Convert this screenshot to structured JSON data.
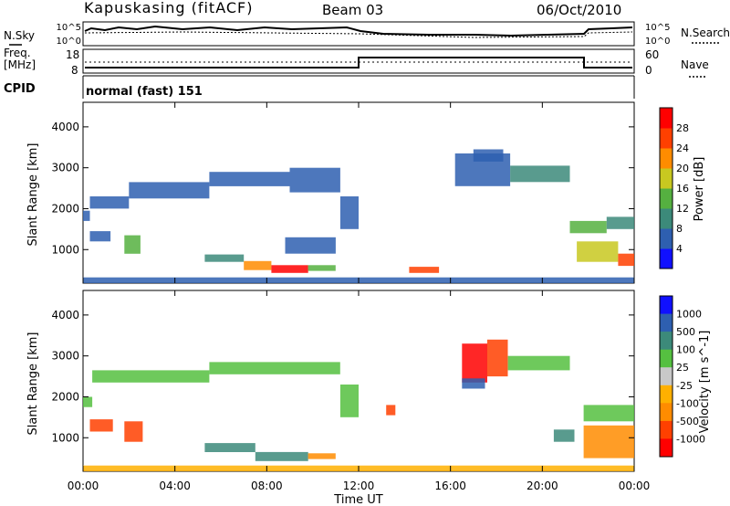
{
  "header": {
    "site": "Kapuskasing (fitACF)",
    "beam": "Beam 03",
    "date": "06/Oct/2010"
  },
  "top_panels": {
    "noise": {
      "left_label": "N.Sky",
      "right_label": "N.Search",
      "left_ticks": [
        "10^5",
        "10^0"
      ],
      "right_ticks": [
        "10^5",
        "10^0"
      ]
    },
    "freq": {
      "left_label_1": "Freq.",
      "left_label_2": "[MHz]",
      "right_label": "Nave",
      "left_ticks": [
        "18",
        "8"
      ],
      "right_ticks": [
        "60",
        "0"
      ]
    },
    "cpid": {
      "label": "CPID",
      "mode_text": "normal (fast) 151"
    }
  },
  "chart_data": [
    {
      "type": "heatmap",
      "title": "",
      "ylabel": "Slant Range [km]",
      "xlabel": "",
      "xlim": [
        0,
        24
      ],
      "ylim": [
        180,
        4600
      ],
      "yticks": [
        "1000",
        "2000",
        "3000",
        "4000"
      ],
      "colorbar": {
        "label": "Power [dB]",
        "ticks": [
          "4",
          "8",
          "12",
          "16",
          "20",
          "24",
          "28"
        ],
        "colors": [
          "#1010ff",
          "#2e5fb0",
          "#3c8a7a",
          "#55b040",
          "#c8c820",
          "#ff8c00",
          "#ff4000",
          "#ff0000"
        ],
        "range": [
          0,
          32
        ]
      },
      "regions": [
        {
          "t0": 0.0,
          "t1": 0.3,
          "r0": 1700,
          "r1": 1950,
          "value": 6
        },
        {
          "t0": 0.3,
          "t1": 2.0,
          "r0": 2000,
          "r1": 2300,
          "value": 4
        },
        {
          "t0": 2.0,
          "t1": 5.5,
          "r0": 2250,
          "r1": 2650,
          "value": 4
        },
        {
          "t0": 5.5,
          "t1": 9.0,
          "r0": 2550,
          "r1": 2900,
          "value": 4
        },
        {
          "t0": 9.0,
          "t1": 11.2,
          "r0": 2400,
          "r1": 3000,
          "value": 4
        },
        {
          "t0": 11.2,
          "t1": 12.0,
          "r0": 1500,
          "r1": 2300,
          "value": 4
        },
        {
          "t0": 0.3,
          "t1": 1.2,
          "r0": 1200,
          "r1": 1450,
          "value": 4
        },
        {
          "t0": 1.8,
          "t1": 2.5,
          "r0": 900,
          "r1": 1350,
          "value": 12
        },
        {
          "t0": 5.3,
          "t1": 7.0,
          "r0": 700,
          "r1": 880,
          "value": 8
        },
        {
          "t0": 7.0,
          "t1": 8.2,
          "r0": 500,
          "r1": 720,
          "value": 20
        },
        {
          "t0": 8.2,
          "t1": 9.8,
          "r0": 430,
          "r1": 620,
          "value": 28
        },
        {
          "t0": 9.8,
          "t1": 11.0,
          "r0": 480,
          "r1": 620,
          "value": 12
        },
        {
          "t0": 8.8,
          "t1": 11.0,
          "r0": 900,
          "r1": 1300,
          "value": 6
        },
        {
          "t0": 14.2,
          "t1": 15.5,
          "r0": 430,
          "r1": 580,
          "value": 24
        },
        {
          "t0": 16.2,
          "t1": 18.6,
          "r0": 2550,
          "r1": 3350,
          "value": 6
        },
        {
          "t0": 18.6,
          "t1": 21.2,
          "r0": 2650,
          "r1": 3050,
          "value": 10
        },
        {
          "t0": 17.0,
          "t1": 18.3,
          "r0": 3150,
          "r1": 3450,
          "value": 4
        },
        {
          "t0": 21.2,
          "t1": 22.8,
          "r0": 1400,
          "r1": 1700,
          "value": 14
        },
        {
          "t0": 22.8,
          "t1": 24.0,
          "r0": 1500,
          "r1": 1800,
          "value": 10
        },
        {
          "t0": 21.5,
          "t1": 23.3,
          "r0": 700,
          "r1": 1200,
          "value": 18
        },
        {
          "t0": 23.3,
          "t1": 24.0,
          "r0": 600,
          "r1": 900,
          "value": 24
        },
        {
          "t0": 0.0,
          "t1": 24.0,
          "r0": 180,
          "r1": 320,
          "value": 4
        }
      ]
    },
    {
      "type": "heatmap",
      "title": "",
      "ylabel": "Slant Range [km]",
      "xlabel": "Time UT",
      "xlim": [
        0,
        24
      ],
      "ylim": [
        180,
        4600
      ],
      "yticks": [
        "1000",
        "2000",
        "3000",
        "4000"
      ],
      "xticks": [
        "00:00",
        "04:00",
        "08:00",
        "12:00",
        "16:00",
        "20:00",
        "00:00"
      ],
      "colorbar": {
        "label": "Velocity [m s^-1]",
        "ticks": [
          "1000",
          "500",
          "100",
          "25",
          "-25",
          "-100",
          "-500",
          "-1000"
        ],
        "colors": [
          "#1010ff",
          "#2e5fb0",
          "#3c8a7a",
          "#55c040",
          "#c8c8c8",
          "#ffb000",
          "#ff8c00",
          "#ff4000",
          "#ff0000"
        ]
      },
      "regions": [
        {
          "t0": 0.0,
          "t1": 0.4,
          "r0": 1750,
          "r1": 2000,
          "value": "25"
        },
        {
          "t0": 0.4,
          "t1": 5.5,
          "r0": 2350,
          "r1": 2650,
          "value": "25"
        },
        {
          "t0": 5.5,
          "t1": 11.2,
          "r0": 2550,
          "r1": 2850,
          "value": "25"
        },
        {
          "t0": 11.2,
          "t1": 12.0,
          "r0": 1500,
          "r1": 2300,
          "value": "25"
        },
        {
          "t0": 0.3,
          "t1": 1.3,
          "r0": 1150,
          "r1": 1450,
          "value": "-500"
        },
        {
          "t0": 1.8,
          "t1": 2.6,
          "r0": 900,
          "r1": 1400,
          "value": "-500"
        },
        {
          "t0": 5.3,
          "t1": 7.5,
          "r0": 650,
          "r1": 870,
          "value": "100"
        },
        {
          "t0": 7.5,
          "t1": 9.8,
          "r0": 430,
          "r1": 650,
          "value": "100"
        },
        {
          "t0": 9.8,
          "t1": 11.0,
          "r0": 480,
          "r1": 620,
          "value": "-100"
        },
        {
          "t0": 16.5,
          "t1": 17.6,
          "r0": 2350,
          "r1": 3300,
          "value": "-1000"
        },
        {
          "t0": 17.6,
          "t1": 18.5,
          "r0": 2500,
          "r1": 3400,
          "value": "-500"
        },
        {
          "t0": 18.5,
          "t1": 21.2,
          "r0": 2650,
          "r1": 3000,
          "value": "25"
        },
        {
          "t0": 16.5,
          "t1": 17.5,
          "r0": 2200,
          "r1": 2450,
          "value": "500"
        },
        {
          "t0": 13.2,
          "t1": 13.6,
          "r0": 1550,
          "r1": 1800,
          "value": "-500"
        },
        {
          "t0": 20.5,
          "t1": 21.4,
          "r0": 900,
          "r1": 1200,
          "value": "100"
        },
        {
          "t0": 21.8,
          "t1": 24.0,
          "r0": 1400,
          "r1": 1800,
          "value": "25"
        },
        {
          "t0": 21.8,
          "t1": 24.0,
          "r0": 500,
          "r1": 1300,
          "value": "-100"
        },
        {
          "t0": 0.0,
          "t1": 24.0,
          "r0": 180,
          "r1": 320,
          "value": "-25"
        }
      ]
    }
  ]
}
